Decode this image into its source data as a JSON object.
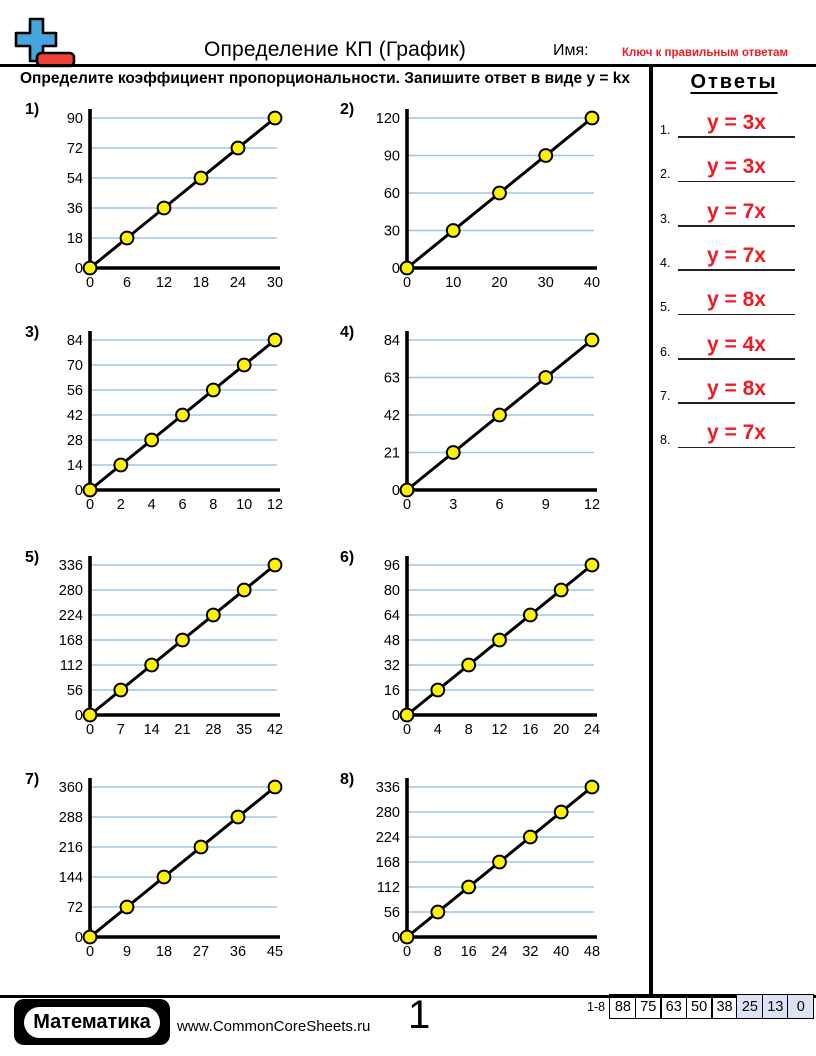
{
  "header": {
    "title": "Определение КП (График)",
    "name_label": "Имя:",
    "key_label": "Ключ к правильным ответам",
    "instruction": "Определите коэффициент пропорциональности. Запишите ответ в виде y = kx"
  },
  "answers_panel": {
    "title": "Ответы",
    "items": [
      {
        "number": "1.",
        "answer": "y = 3x"
      },
      {
        "number": "2.",
        "answer": "y = 3x"
      },
      {
        "number": "3.",
        "answer": "y = 7x"
      },
      {
        "number": "4.",
        "answer": "y = 7x"
      },
      {
        "number": "5.",
        "answer": "y = 8x"
      },
      {
        "number": "6.",
        "answer": "y = 4x"
      },
      {
        "number": "7.",
        "answer": "y = 8x"
      },
      {
        "number": "8.",
        "answer": "y = 7x"
      }
    ]
  },
  "chart_data": [
    {
      "type": "line",
      "label": "1)",
      "k": 3,
      "x_ticks": [
        0,
        6,
        12,
        18,
        24,
        30
      ],
      "y_ticks": [
        0,
        18,
        36,
        54,
        72,
        90
      ],
      "points": [
        [
          0,
          0
        ],
        [
          6,
          18
        ],
        [
          12,
          36
        ],
        [
          18,
          54
        ],
        [
          24,
          72
        ],
        [
          30,
          90
        ]
      ],
      "xlim": [
        0,
        30
      ],
      "ylim": [
        0,
        90
      ],
      "grid": "horizontal"
    },
    {
      "type": "line",
      "label": "2)",
      "k": 3,
      "x_ticks": [
        0,
        10,
        20,
        30,
        40
      ],
      "y_ticks": [
        0,
        30,
        60,
        90,
        120
      ],
      "points": [
        [
          0,
          0
        ],
        [
          10,
          30
        ],
        [
          20,
          60
        ],
        [
          30,
          90
        ],
        [
          40,
          120
        ]
      ],
      "xlim": [
        0,
        40
      ],
      "ylim": [
        0,
        120
      ],
      "grid": "horizontal"
    },
    {
      "type": "line",
      "label": "3)",
      "k": 7,
      "x_ticks": [
        0,
        2,
        4,
        6,
        8,
        10,
        12
      ],
      "y_ticks": [
        0,
        14,
        28,
        42,
        56,
        70,
        84
      ],
      "points": [
        [
          0,
          0
        ],
        [
          2,
          14
        ],
        [
          4,
          28
        ],
        [
          6,
          42
        ],
        [
          8,
          56
        ],
        [
          10,
          70
        ],
        [
          12,
          84
        ]
      ],
      "xlim": [
        0,
        12
      ],
      "ylim": [
        0,
        84
      ],
      "grid": "horizontal"
    },
    {
      "type": "line",
      "label": "4)",
      "k": 7,
      "x_ticks": [
        0,
        3,
        6,
        9,
        12
      ],
      "y_ticks": [
        0,
        21,
        42,
        63,
        84
      ],
      "points": [
        [
          0,
          0
        ],
        [
          3,
          21
        ],
        [
          6,
          42
        ],
        [
          9,
          63
        ],
        [
          12,
          84
        ]
      ],
      "xlim": [
        0,
        12
      ],
      "ylim": [
        0,
        84
      ],
      "grid": "horizontal"
    },
    {
      "type": "line",
      "label": "5)",
      "k": 8,
      "x_ticks": [
        0,
        7,
        14,
        21,
        28,
        35,
        42
      ],
      "y_ticks": [
        0,
        56,
        112,
        168,
        224,
        280,
        336
      ],
      "points": [
        [
          0,
          0
        ],
        [
          7,
          56
        ],
        [
          14,
          112
        ],
        [
          21,
          168
        ],
        [
          28,
          224
        ],
        [
          35,
          280
        ],
        [
          42,
          336
        ]
      ],
      "xlim": [
        0,
        42
      ],
      "ylim": [
        0,
        336
      ],
      "grid": "horizontal"
    },
    {
      "type": "line",
      "label": "6)",
      "k": 4,
      "x_ticks": [
        0,
        4,
        8,
        12,
        16,
        20,
        24
      ],
      "y_ticks": [
        0,
        16,
        32,
        48,
        64,
        80,
        96
      ],
      "points": [
        [
          0,
          0
        ],
        [
          4,
          16
        ],
        [
          8,
          32
        ],
        [
          12,
          48
        ],
        [
          16,
          64
        ],
        [
          20,
          80
        ],
        [
          24,
          96
        ]
      ],
      "xlim": [
        0,
        24
      ],
      "ylim": [
        0,
        96
      ],
      "grid": "horizontal"
    },
    {
      "type": "line",
      "label": "7)",
      "k": 8,
      "x_ticks": [
        0,
        9,
        18,
        27,
        36,
        45
      ],
      "y_ticks": [
        0,
        72,
        144,
        216,
        288,
        360
      ],
      "points": [
        [
          0,
          0
        ],
        [
          9,
          72
        ],
        [
          18,
          144
        ],
        [
          27,
          216
        ],
        [
          36,
          288
        ],
        [
          45,
          360
        ]
      ],
      "xlim": [
        0,
        45
      ],
      "ylim": [
        0,
        360
      ],
      "grid": "horizontal"
    },
    {
      "type": "line",
      "label": "8)",
      "k": 7,
      "x_ticks": [
        0,
        8,
        16,
        24,
        32,
        40,
        48
      ],
      "y_ticks": [
        0,
        56,
        112,
        168,
        224,
        280,
        336
      ],
      "points": [
        [
          0,
          0
        ],
        [
          8,
          56
        ],
        [
          16,
          112
        ],
        [
          24,
          168
        ],
        [
          32,
          224
        ],
        [
          40,
          280
        ],
        [
          48,
          336
        ]
      ],
      "xlim": [
        0,
        48
      ],
      "ylim": [
        0,
        336
      ],
      "grid": "horizontal"
    }
  ],
  "colors": {
    "answer_red": "#ed1c24",
    "key_red": "#ed1c24",
    "gridline_blue": "#9fc5e8",
    "dot_yellow": "#fff200",
    "line_black": "#000000",
    "score_highlight_bg": "#dbe3f5",
    "logo_blue": "#45a5dc",
    "logo_red": "#ee4035"
  },
  "footer": {
    "brand": "Математика",
    "website": "www.CommonCoreSheets.ru",
    "page_number": "1",
    "score_label": "1-8",
    "score_values": [
      "88",
      "75",
      "63",
      "50",
      "38",
      "25",
      "13",
      "0"
    ],
    "score_highlight_from_index": 5
  }
}
